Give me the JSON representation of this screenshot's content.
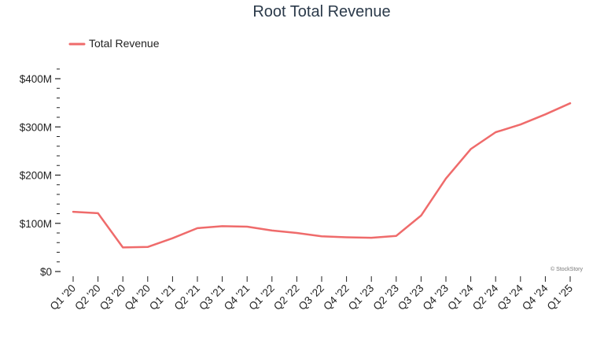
{
  "chart_data": {
    "type": "line",
    "title": "Root Total Revenue",
    "xlabel": "",
    "ylabel": "",
    "categories": [
      "Q1 '20",
      "Q2 '20",
      "Q3 '20",
      "Q4 '20",
      "Q1 '21",
      "Q2 '21",
      "Q3 '21",
      "Q4 '21",
      "Q1 '22",
      "Q2 '22",
      "Q3 '22",
      "Q4 '22",
      "Q1 '23",
      "Q2 '23",
      "Q3 '23",
      "Q4 '23",
      "Q1 '24",
      "Q2 '24",
      "Q3 '24",
      "Q4 '24",
      "Q1 '25"
    ],
    "series": [
      {
        "name": "Total Revenue",
        "color": "#ef6b6b",
        "values": [
          124,
          121,
          50,
          51,
          69,
          90,
          94,
          93,
          85,
          80,
          73,
          71,
          70,
          74,
          116,
          193,
          254,
          289,
          305,
          326,
          349
        ]
      }
    ],
    "ylim": [
      0,
      420
    ],
    "yticks": [
      {
        "value": 0,
        "label": "$0"
      },
      {
        "value": 100,
        "label": "$100M"
      },
      {
        "value": 200,
        "label": "$200M"
      },
      {
        "value": 300,
        "label": "$300M"
      },
      {
        "value": 400,
        "label": "$400M"
      }
    ],
    "minor_tick_step": 20,
    "grid": false,
    "legend_position": "top-left",
    "watermark": "© StockStory"
  }
}
